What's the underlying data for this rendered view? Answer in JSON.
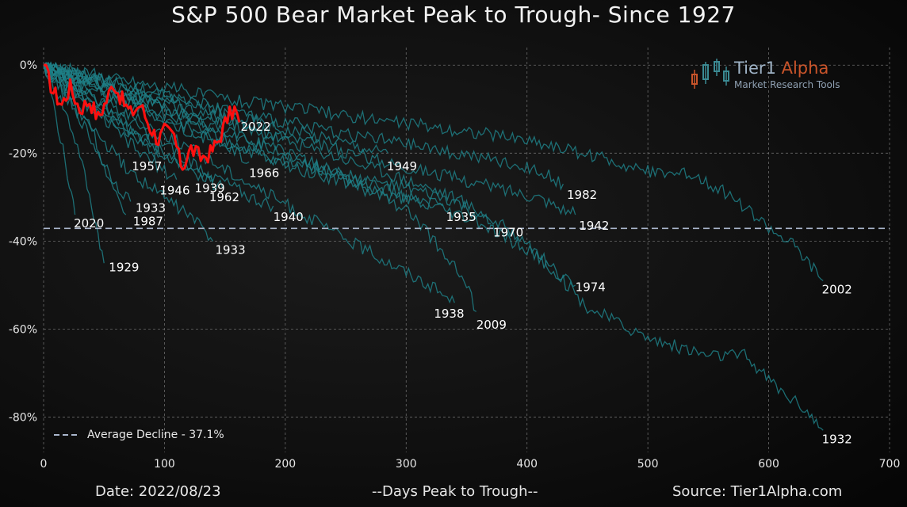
{
  "title": "S&P 500 Bear Market Peak to Trough- Since 1927",
  "footer": {
    "date": "Date: 2022/08/23",
    "xlabel": "--Days Peak to Trough--",
    "source": "Source: Tier1Alpha.com"
  },
  "logo": {
    "name_part1": "Tier1 ",
    "name_part2": "Alpha",
    "tagline": "Market Research Tools"
  },
  "legend": {
    "average_label": "Average Decline - 37.1%"
  },
  "colors": {
    "history_line": "#1f7f86",
    "current_line": "#ff1010",
    "average_line": "#aab6cc",
    "grid": "#6a6a6a",
    "text": "#ffffff"
  },
  "chart_data": {
    "type": "line",
    "title": "S&P 500 Bear Market Peak to Trough- Since 1927",
    "xlabel": "--Days Peak to Trough--",
    "ylabel": "",
    "xlim": [
      0,
      700
    ],
    "ylim": [
      -88,
      4
    ],
    "x_ticks": [
      0,
      100,
      200,
      300,
      400,
      500,
      600,
      700
    ],
    "y_ticks": [
      0,
      -20,
      -40,
      -60,
      -80
    ],
    "y_tick_labels": [
      "0%",
      "-20%",
      "-40%",
      "-60%",
      "-80%"
    ],
    "grid": true,
    "average_decline": -37.1,
    "legend_position": "bottom-left",
    "series": [
      {
        "name": "2022",
        "current": true,
        "end_label": "2022",
        "points": [
          [
            0,
            0
          ],
          [
            8,
            -6
          ],
          [
            15,
            -9
          ],
          [
            22,
            -5
          ],
          [
            30,
            -10
          ],
          [
            38,
            -8
          ],
          [
            45,
            -12
          ],
          [
            52,
            -8
          ],
          [
            58,
            -4
          ],
          [
            65,
            -8
          ],
          [
            72,
            -11
          ],
          [
            80,
            -9
          ],
          [
            88,
            -14
          ],
          [
            95,
            -17
          ],
          [
            100,
            -15
          ],
          [
            108,
            -16
          ],
          [
            112,
            -21
          ],
          [
            115,
            -23
          ],
          [
            122,
            -19
          ],
          [
            130,
            -21
          ],
          [
            138,
            -20
          ],
          [
            145,
            -17
          ],
          [
            152,
            -12
          ],
          [
            158,
            -10
          ],
          [
            162,
            -13
          ]
        ]
      },
      {
        "name": "1929",
        "end_label": "1929",
        "points": [
          [
            0,
            0
          ],
          [
            10,
            -5
          ],
          [
            20,
            -12
          ],
          [
            30,
            -20
          ],
          [
            38,
            -30
          ],
          [
            45,
            -38
          ],
          [
            50,
            -45
          ]
        ]
      },
      {
        "name": "2020",
        "end_label": "2020",
        "points": [
          [
            0,
            0
          ],
          [
            6,
            -6
          ],
          [
            12,
            -14
          ],
          [
            18,
            -22
          ],
          [
            23,
            -30
          ],
          [
            26,
            -34
          ]
        ]
      },
      {
        "name": "1987",
        "end_label": "1987",
        "points": [
          [
            0,
            0
          ],
          [
            12,
            -4
          ],
          [
            25,
            -8
          ],
          [
            40,
            -14
          ],
          [
            52,
            -25
          ],
          [
            60,
            -30
          ],
          [
            68,
            -34
          ]
        ]
      },
      {
        "name": "1933a",
        "end_label": "1933",
        "points": [
          [
            0,
            0
          ],
          [
            15,
            -5
          ],
          [
            30,
            -12
          ],
          [
            45,
            -20
          ],
          [
            60,
            -27
          ],
          [
            72,
            -31
          ]
        ]
      },
      {
        "name": "1957",
        "end_label": "1957",
        "points": [
          [
            0,
            0
          ],
          [
            20,
            -4
          ],
          [
            40,
            -8
          ],
          [
            60,
            -12
          ],
          [
            80,
            -17
          ],
          [
            95,
            -21
          ]
        ]
      },
      {
        "name": "1946",
        "end_label": "1946",
        "points": [
          [
            0,
            0
          ],
          [
            20,
            -5
          ],
          [
            40,
            -10
          ],
          [
            60,
            -15
          ],
          [
            80,
            -20
          ],
          [
            100,
            -24
          ],
          [
            110,
            -26
          ]
        ]
      },
      {
        "name": "1939",
        "end_label": "1939",
        "points": [
          [
            0,
            0
          ],
          [
            25,
            -6
          ],
          [
            50,
            -11
          ],
          [
            80,
            -17
          ],
          [
            110,
            -22
          ],
          [
            130,
            -25
          ],
          [
            140,
            -26
          ]
        ]
      },
      {
        "name": "1962",
        "end_label": "1962",
        "points": [
          [
            0,
            0
          ],
          [
            25,
            -5
          ],
          [
            50,
            -10
          ],
          [
            80,
            -16
          ],
          [
            110,
            -22
          ],
          [
            135,
            -26
          ],
          [
            148,
            -28
          ]
        ]
      },
      {
        "name": "1933b",
        "end_label": "1933",
        "points": [
          [
            0,
            0
          ],
          [
            20,
            -8
          ],
          [
            45,
            -16
          ],
          [
            70,
            -24
          ],
          [
            100,
            -30
          ],
          [
            125,
            -35
          ],
          [
            140,
            -40
          ]
        ]
      },
      {
        "name": "1966",
        "end_label": "1966",
        "points": [
          [
            0,
            0
          ],
          [
            30,
            -4
          ],
          [
            60,
            -8
          ],
          [
            90,
            -11
          ],
          [
            120,
            -15
          ],
          [
            150,
            -18
          ],
          [
            170,
            -22
          ]
        ]
      },
      {
        "name": "1940",
        "end_label": "1940",
        "points": [
          [
            0,
            0
          ],
          [
            30,
            -5
          ],
          [
            60,
            -11
          ],
          [
            100,
            -18
          ],
          [
            140,
            -25
          ],
          [
            170,
            -30
          ],
          [
            190,
            -32
          ]
        ]
      },
      {
        "name": "1949",
        "end_label": "1949",
        "points": [
          [
            0,
            0
          ],
          [
            40,
            -3
          ],
          [
            90,
            -6
          ],
          [
            140,
            -10
          ],
          [
            190,
            -14
          ],
          [
            240,
            -17
          ],
          [
            285,
            -20
          ]
        ]
      },
      {
        "name": "1935",
        "end_label": "1935",
        "points": [
          [
            0,
            0
          ],
          [
            40,
            -5
          ],
          [
            90,
            -10
          ],
          [
            140,
            -16
          ],
          [
            190,
            -22
          ],
          [
            240,
            -26
          ],
          [
            290,
            -30
          ],
          [
            330,
            -32
          ]
        ]
      },
      {
        "name": "1938",
        "end_label": "1938",
        "points": [
          [
            0,
            0
          ],
          [
            40,
            -7
          ],
          [
            90,
            -14
          ],
          [
            140,
            -22
          ],
          [
            190,
            -30
          ],
          [
            240,
            -38
          ],
          [
            280,
            -44
          ],
          [
            320,
            -50
          ],
          [
            340,
            -54
          ]
        ]
      },
      {
        "name": "2009",
        "end_label": "2009",
        "points": [
          [
            0,
            0
          ],
          [
            50,
            -5
          ],
          [
            100,
            -10
          ],
          [
            150,
            -15
          ],
          [
            200,
            -20
          ],
          [
            250,
            -26
          ],
          [
            300,
            -33
          ],
          [
            330,
            -42
          ],
          [
            350,
            -50
          ],
          [
            358,
            -56
          ]
        ]
      },
      {
        "name": "1970",
        "end_label": "1970",
        "points": [
          [
            0,
            0
          ],
          [
            50,
            -6
          ],
          [
            100,
            -12
          ],
          [
            150,
            -18
          ],
          [
            200,
            -22
          ],
          [
            250,
            -25
          ],
          [
            300,
            -28
          ],
          [
            340,
            -31
          ],
          [
            370,
            -36
          ]
        ]
      },
      {
        "name": "1982",
        "end_label": "1982",
        "points": [
          [
            0,
            0
          ],
          [
            60,
            -4
          ],
          [
            120,
            -8
          ],
          [
            180,
            -12
          ],
          [
            240,
            -15
          ],
          [
            300,
            -18
          ],
          [
            360,
            -21
          ],
          [
            410,
            -24
          ],
          [
            430,
            -27
          ]
        ]
      },
      {
        "name": "1942",
        "end_label": "1942",
        "points": [
          [
            0,
            0
          ],
          [
            60,
            -5
          ],
          [
            120,
            -10
          ],
          [
            180,
            -15
          ],
          [
            240,
            -19
          ],
          [
            300,
            -23
          ],
          [
            360,
            -27
          ],
          [
            410,
            -30
          ],
          [
            440,
            -34
          ]
        ]
      },
      {
        "name": "1974",
        "end_label": "1974",
        "points": [
          [
            0,
            0
          ],
          [
            60,
            -6
          ],
          [
            120,
            -12
          ],
          [
            180,
            -18
          ],
          [
            240,
            -24
          ],
          [
            300,
            -30
          ],
          [
            360,
            -36
          ],
          [
            400,
            -42
          ],
          [
            430,
            -48
          ],
          [
            440,
            -50
          ]
        ]
      },
      {
        "name": "2002",
        "end_label": "2002",
        "points": [
          [
            0,
            0
          ],
          [
            80,
            -4
          ],
          [
            160,
            -8
          ],
          [
            240,
            -11
          ],
          [
            320,
            -14
          ],
          [
            400,
            -17
          ],
          [
            460,
            -21
          ],
          [
            500,
            -24
          ],
          [
            540,
            -25
          ],
          [
            570,
            -30
          ],
          [
            600,
            -37
          ],
          [
            620,
            -41
          ],
          [
            645,
            -49
          ]
        ]
      },
      {
        "name": "1932",
        "end_label": "1932",
        "points": [
          [
            0,
            0
          ],
          [
            70,
            -6
          ],
          [
            140,
            -12
          ],
          [
            210,
            -18
          ],
          [
            280,
            -24
          ],
          [
            340,
            -30
          ],
          [
            400,
            -40
          ],
          [
            450,
            -55
          ],
          [
            500,
            -62
          ],
          [
            550,
            -66
          ],
          [
            580,
            -66
          ],
          [
            610,
            -74
          ],
          [
            630,
            -78
          ],
          [
            645,
            -83
          ]
        ]
      }
    ],
    "annotations": [
      {
        "text": "2022",
        "x": 163,
        "y": -14
      },
      {
        "text": "1957",
        "x": 73,
        "y": -23
      },
      {
        "text": "1966",
        "x": 170,
        "y": -24.5
      },
      {
        "text": "1949",
        "x": 284,
        "y": -23
      },
      {
        "text": "1946",
        "x": 96,
        "y": -28.5
      },
      {
        "text": "1939",
        "x": 125,
        "y": -28
      },
      {
        "text": "1962",
        "x": 137,
        "y": -30
      },
      {
        "text": "1982",
        "x": 433,
        "y": -29.5
      },
      {
        "text": "1933",
        "x": 76,
        "y": -32.5
      },
      {
        "text": "1940",
        "x": 190,
        "y": -34.5
      },
      {
        "text": "1935",
        "x": 333,
        "y": -34.5
      },
      {
        "text": "2020",
        "x": 25,
        "y": -36
      },
      {
        "text": "1987",
        "x": 74,
        "y": -35.5
      },
      {
        "text": "1942",
        "x": 443,
        "y": -36.5
      },
      {
        "text": "1970",
        "x": 372,
        "y": -38
      },
      {
        "text": "1933",
        "x": 142,
        "y": -42
      },
      {
        "text": "1929",
        "x": 54,
        "y": -46
      },
      {
        "text": "1974",
        "x": 440,
        "y": -50.5
      },
      {
        "text": "2002",
        "x": 644,
        "y": -51
      },
      {
        "text": "1938",
        "x": 323,
        "y": -56.5
      },
      {
        "text": "2009",
        "x": 358,
        "y": -59
      },
      {
        "text": "1932",
        "x": 644,
        "y": -85
      }
    ]
  }
}
